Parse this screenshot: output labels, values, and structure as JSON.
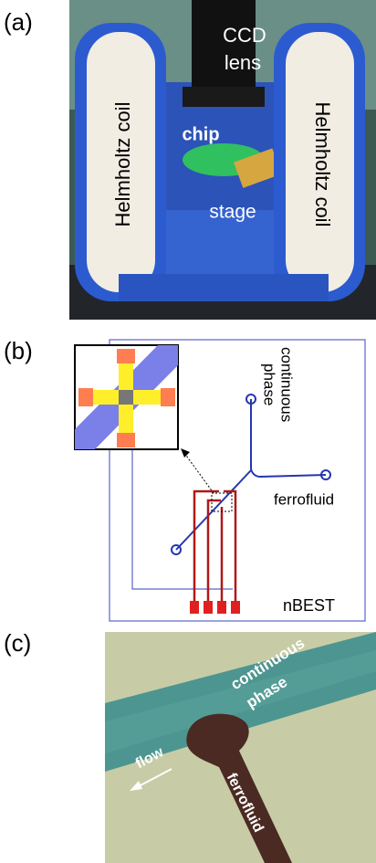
{
  "panel_a": {
    "label": "(a)",
    "lens_label": [
      "CCD",
      "lens"
    ],
    "coil_left": "Helmholtz coil",
    "coil_right": "Helmholtz coil",
    "chip": "chip",
    "stage": "stage"
  },
  "panel_b": {
    "label": "(b)",
    "continuous_phase": [
      "continuous",
      "phase"
    ],
    "ferrofluid": "ferrofluid",
    "device": "nBEST"
  },
  "panel_c": {
    "label": "(c)",
    "continuous_phase": [
      "continuous",
      "phase"
    ],
    "flow": "flow",
    "ferrofluid": "ferrofluid"
  }
}
